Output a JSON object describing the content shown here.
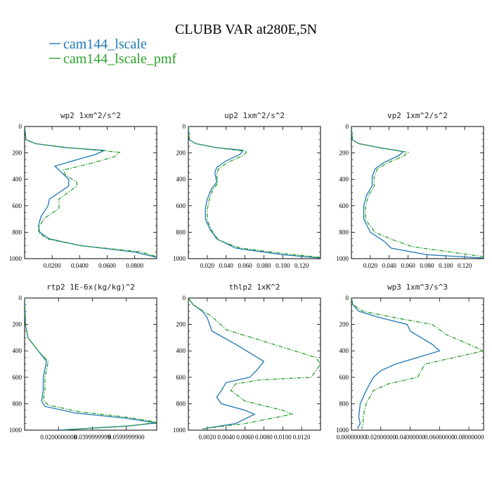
{
  "title": "CLUBB VAR at280E,5N",
  "legend": [
    {
      "label": "cam144_lscale",
      "color": "#1f77b4",
      "dash": "solid"
    },
    {
      "label": "cam144_lscale_pmf",
      "color": "#2ca02c",
      "dash": "dashdot"
    }
  ],
  "chart_data": [
    {
      "type": "line",
      "title": "wp2  1xm^2/s^2",
      "xlim": [
        0,
        0.096
      ],
      "ylim": [
        1000,
        0
      ],
      "xticks": [
        0.02,
        0.04,
        0.06,
        0.08
      ],
      "xtick_labels": [
        "0.0200",
        "0.0400",
        "0.0600",
        "0.0800"
      ],
      "yticks": [
        0,
        200,
        400,
        600,
        800,
        1000
      ],
      "ytick_labels": [
        "0",
        "200",
        "400",
        "600",
        "800",
        "1000"
      ],
      "series": [
        {
          "name": "cam144_lscale",
          "x": [
            0.0,
            0.001,
            0.008,
            0.03,
            0.058,
            0.052,
            0.035,
            0.022,
            0.025,
            0.032,
            0.032,
            0.018,
            0.017,
            0.012,
            0.01,
            0.011,
            0.018,
            0.04,
            0.08,
            0.096
          ],
          "y": [
            0,
            100,
            130,
            160,
            180,
            210,
            260,
            300,
            330,
            400,
            450,
            550,
            600,
            680,
            750,
            800,
            850,
            900,
            950,
            990
          ]
        },
        {
          "name": "cam144_lscale_pmf",
          "x": [
            0.0,
            0.001,
            0.008,
            0.032,
            0.069,
            0.065,
            0.048,
            0.028,
            0.03,
            0.038,
            0.038,
            0.025,
            0.025,
            0.015,
            0.011,
            0.01,
            0.016,
            0.04,
            0.085,
            0.096
          ],
          "y": [
            0,
            100,
            130,
            160,
            195,
            230,
            280,
            330,
            370,
            420,
            450,
            550,
            620,
            690,
            750,
            800,
            850,
            900,
            950,
            985
          ]
        }
      ]
    },
    {
      "type": "line",
      "title": "up2  1xm^2/s^2",
      "xlim": [
        0,
        0.14
      ],
      "ylim": [
        1000,
        0
      ],
      "xticks": [
        0.02,
        0.04,
        0.06,
        0.08,
        0.1,
        0.12
      ],
      "xtick_labels": [
        "0.020",
        "0.040",
        "0.060",
        "0.080",
        "0.100",
        "0.120"
      ],
      "yticks": [
        0,
        200,
        400,
        600,
        800,
        1000
      ],
      "ytick_labels": [
        "0",
        "200",
        "400",
        "600",
        "800",
        "1000"
      ],
      "series": [
        {
          "name": "cam144_lscale",
          "x": [
            0.0,
            0.001,
            0.008,
            0.03,
            0.058,
            0.055,
            0.04,
            0.03,
            0.028,
            0.03,
            0.024,
            0.02,
            0.018,
            0.018,
            0.023,
            0.03,
            0.05,
            0.1,
            0.14
          ],
          "y": [
            0,
            100,
            130,
            160,
            180,
            210,
            260,
            310,
            350,
            420,
            480,
            550,
            620,
            700,
            780,
            850,
            920,
            970,
            995
          ]
        },
        {
          "name": "cam144_lscale_pmf",
          "x": [
            0.0,
            0.001,
            0.008,
            0.03,
            0.062,
            0.058,
            0.042,
            0.032,
            0.03,
            0.031,
            0.025,
            0.022,
            0.02,
            0.02,
            0.025,
            0.032,
            0.055,
            0.105,
            0.14
          ],
          "y": [
            0,
            100,
            130,
            160,
            190,
            220,
            270,
            320,
            360,
            430,
            490,
            560,
            630,
            710,
            790,
            860,
            920,
            965,
            990
          ]
        }
      ]
    },
    {
      "type": "line",
      "title": "vp2  1xm^2/s^2",
      "xlim": [
        0,
        0.14
      ],
      "ylim": [
        1000,
        0
      ],
      "xticks": [
        0.02,
        0.04,
        0.06,
        0.08,
        0.1,
        0.12
      ],
      "xtick_labels": [
        "0.020",
        "0.040",
        "0.060",
        "0.080",
        "0.100",
        "0.120"
      ],
      "yticks": [
        0,
        200,
        400,
        600,
        800,
        1000
      ],
      "ytick_labels": [
        "0",
        "200",
        "400",
        "600",
        "800",
        "1000"
      ],
      "series": [
        {
          "name": "cam144_lscale",
          "x": [
            0.0,
            0.001,
            0.008,
            0.03,
            0.055,
            0.05,
            0.035,
            0.025,
            0.022,
            0.022,
            0.016,
            0.013,
            0.013,
            0.02,
            0.035,
            0.042,
            0.08,
            0.14
          ],
          "y": [
            0,
            100,
            130,
            160,
            190,
            220,
            270,
            320,
            380,
            450,
            520,
            600,
            700,
            800,
            870,
            920,
            970,
            995
          ]
        },
        {
          "name": "cam144_lscale_pmf",
          "x": [
            0.0,
            0.001,
            0.008,
            0.03,
            0.06,
            0.055,
            0.038,
            0.027,
            0.024,
            0.024,
            0.018,
            0.015,
            0.015,
            0.025,
            0.045,
            0.065,
            0.11,
            0.14
          ],
          "y": [
            0,
            100,
            130,
            160,
            195,
            225,
            275,
            325,
            385,
            455,
            525,
            605,
            705,
            800,
            860,
            910,
            955,
            985
          ]
        }
      ]
    },
    {
      "type": "line",
      "title": "rtp2  1E-6x(kg/kg)^2",
      "xlim": [
        0,
        0.078
      ],
      "ylim": [
        1000,
        0
      ],
      "xticks": [
        0.02,
        0.04,
        0.06
      ],
      "xtick_labels": [
        "0.0200000000",
        "0.0399999999",
        "0.0599999900"
      ],
      "yticks": [
        0,
        200,
        400,
        600,
        800,
        1000
      ],
      "ytick_labels": [
        "0",
        "200",
        "400",
        "600",
        "800",
        "1000"
      ],
      "series": [
        {
          "name": "cam144_lscale",
          "x": [
            0.0,
            0.0005,
            0.002,
            0.008,
            0.013,
            0.012,
            0.011,
            0.011,
            0.01,
            0.012,
            0.03,
            0.06,
            0.078,
            0.06,
            0.02
          ],
          "y": [
            0,
            200,
            300,
            400,
            480,
            540,
            600,
            700,
            780,
            820,
            870,
            910,
            945,
            970,
            1000
          ]
        },
        {
          "name": "cam144_lscale_pmf",
          "x": [
            0.0,
            0.0005,
            0.002,
            0.008,
            0.014,
            0.013,
            0.012,
            0.012,
            0.011,
            0.014,
            0.032,
            0.062,
            0.078,
            0.065,
            0.025
          ],
          "y": [
            0,
            200,
            300,
            400,
            480,
            540,
            600,
            700,
            770,
            810,
            860,
            905,
            940,
            965,
            995
          ]
        }
      ]
    },
    {
      "type": "line",
      "title": "thlp2  1xK^2",
      "xlim": [
        0,
        0.014
      ],
      "ylim": [
        1000,
        0
      ],
      "xticks": [
        0.002,
        0.004,
        0.006,
        0.008,
        0.01,
        0.012
      ],
      "xtick_labels": [
        "0.0020",
        "0.0040",
        "0.0060",
        "0.0080",
        "0.0100",
        "0.0120"
      ],
      "yticks": [
        0,
        200,
        400,
        600,
        800,
        1000
      ],
      "ytick_labels": [
        "0",
        "200",
        "400",
        "600",
        "800",
        "1000"
      ],
      "series": [
        {
          "name": "cam144_lscale",
          "x": [
            0.0,
            0.0005,
            0.0015,
            0.002,
            0.0025,
            0.005,
            0.008,
            0.0072,
            0.0065,
            0.004,
            0.0035,
            0.003,
            0.0035,
            0.006,
            0.007,
            0.005,
            0.0015
          ],
          "y": [
            0,
            50,
            100,
            150,
            250,
            350,
            480,
            550,
            600,
            640,
            700,
            750,
            800,
            850,
            880,
            950,
            990
          ]
        },
        {
          "name": "cam144_lscale_pmf",
          "x": [
            0.0,
            0.0005,
            0.0016,
            0.0025,
            0.004,
            0.009,
            0.0135,
            0.014,
            0.013,
            0.0075,
            0.005,
            0.0045,
            0.006,
            0.01,
            0.011,
            0.006,
            0.0015
          ],
          "y": [
            0,
            50,
            100,
            140,
            240,
            350,
            450,
            500,
            600,
            620,
            650,
            700,
            780,
            850,
            880,
            950,
            990
          ]
        }
      ]
    },
    {
      "type": "line",
      "title": "wp3  1xm^3/s^3",
      "xlim": [
        0,
        0.09
      ],
      "ylim": [
        1000,
        0
      ],
      "xticks": [
        0.0,
        0.02,
        0.04,
        0.06,
        0.08
      ],
      "xtick_labels": [
        "0.00000000",
        "0.02000000",
        "0.04000000",
        "0.06000000",
        "0.08000000"
      ],
      "yticks": [
        0,
        200,
        400,
        600,
        800,
        1000
      ],
      "ytick_labels": [
        "0",
        "200",
        "400",
        "600",
        "800",
        "1000"
      ],
      "series": [
        {
          "name": "cam144_lscale",
          "x": [
            0.0,
            0.001,
            0.005,
            0.02,
            0.038,
            0.04,
            0.055,
            0.06,
            0.045,
            0.03,
            0.02,
            0.015,
            0.01,
            0.006,
            0.005,
            0.006,
            0.004
          ],
          "y": [
            0,
            50,
            100,
            150,
            200,
            250,
            350,
            400,
            450,
            500,
            550,
            600,
            700,
            800,
            900,
            950,
            990
          ]
        },
        {
          "name": "cam144_lscale_pmf",
          "x": [
            0.0,
            0.001,
            0.008,
            0.03,
            0.055,
            0.065,
            0.08,
            0.09,
            0.07,
            0.05,
            0.045,
            0.025,
            0.015,
            0.01,
            0.008,
            0.008,
            0.007
          ],
          "y": [
            0,
            50,
            100,
            150,
            200,
            280,
            350,
            400,
            450,
            500,
            600,
            650,
            700,
            800,
            900,
            950,
            990
          ]
        }
      ]
    }
  ]
}
